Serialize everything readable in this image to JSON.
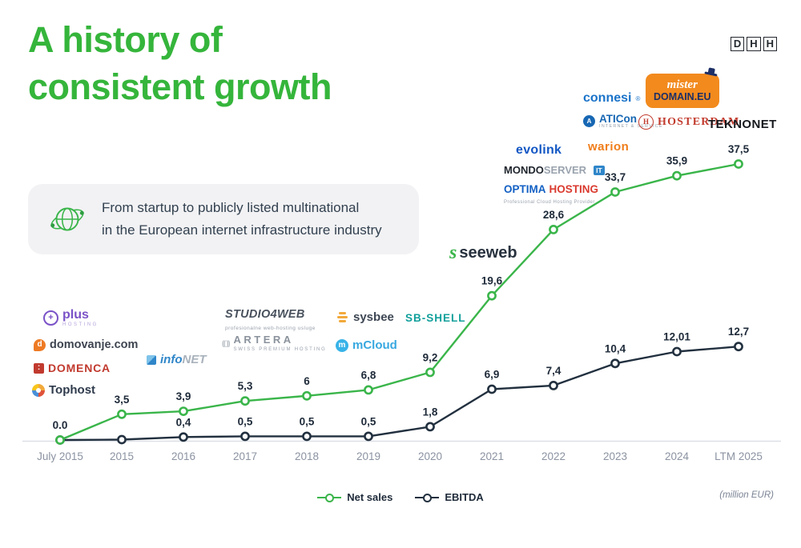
{
  "page": {
    "title_line1": "A history of",
    "title_line2": "consistent growth"
  },
  "brand": {
    "letters": [
      "D",
      "H",
      "H"
    ]
  },
  "callout": {
    "line1": "From startup to publicly listed multinational",
    "line2": "in the European internet infrastructure industry"
  },
  "colors": {
    "accent_green": "#3ab54a",
    "navy": "#1e2a39",
    "axis_label": "#8b93a1",
    "callout_bg": "#f2f2f4"
  },
  "chart_data": {
    "type": "line",
    "title": "A history of consistent growth",
    "unit_note": "(million EUR)",
    "categories": [
      "July 2015",
      "2015",
      "2016",
      "2017",
      "2018",
      "2019",
      "2020",
      "2021",
      "2022",
      "2023",
      "2024",
      "LTM 2025"
    ],
    "series": [
      {
        "name": "Net sales",
        "color": "#3ab54a",
        "values": [
          0,
          3.5,
          3.9,
          5.3,
          6,
          6.8,
          9.2,
          19.6,
          28.6,
          33.7,
          35.9,
          37.5
        ],
        "labels": [
          "0.0",
          "3,5",
          "3,9",
          "5,3",
          "6",
          "6,8",
          "9,2",
          "19,6",
          "28,6",
          "33,7",
          "35,9",
          "37,5"
        ]
      },
      {
        "name": "EBITDA",
        "color": "#22303f",
        "values": [
          0,
          0.05,
          0.4,
          0.5,
          0.5,
          0.5,
          1.8,
          6.9,
          7.4,
          10.4,
          12.01,
          12.7
        ],
        "labels": [
          null,
          null,
          "0,4",
          "0,5",
          "0,5",
          "0,5",
          "1,8",
          "6,9",
          "7,4",
          "10,4",
          "12,01",
          "12,7"
        ]
      }
    ],
    "ylim": [
      0,
      40
    ],
    "grid": false,
    "legend_position": "bottom-center"
  },
  "logos": {
    "plus": {
      "label": "plus",
      "sub": "HOSTING"
    },
    "domovanje": {
      "label": "domovanje.com"
    },
    "domenca": {
      "label": "DOMENCA"
    },
    "tophost": {
      "label": "Tophost"
    },
    "infonet": {
      "label": "info",
      "label2": "NET"
    },
    "studio4web": {
      "label": "STUDIO4WEB",
      "sub": "profesionalne web-hosting usluge"
    },
    "artera": {
      "label": "ARTERA",
      "sub": "SWISS PREMIUM HOSTING"
    },
    "sysbee": {
      "label": "sysbee"
    },
    "mcloud": {
      "label": "mCloud"
    },
    "sbshell": {
      "label": "SB-SHELL"
    },
    "seeweb": {
      "label": "seeweb"
    },
    "evolink": {
      "label": "evolink"
    },
    "mondoserver": {
      "label": "MONDO",
      "label2": "SERVER",
      "label3": "IT"
    },
    "optima": {
      "label": "OPTIMA",
      "label2": "HOSTING",
      "sub": "Professional Cloud Hosting Provider"
    },
    "connesi": {
      "label": "connesi",
      "sup": "®"
    },
    "aticon": {
      "label": "ATICon",
      "sub": "INTERNET & SERVICE"
    },
    "warion": {
      "label": "warion"
    },
    "misterdomain": {
      "label": "mister",
      "label2": "DOMAIN.EU"
    },
    "hosterdam": {
      "label": "HOSTERDAM"
    },
    "teknonet": {
      "label": "TEKNONET"
    }
  }
}
